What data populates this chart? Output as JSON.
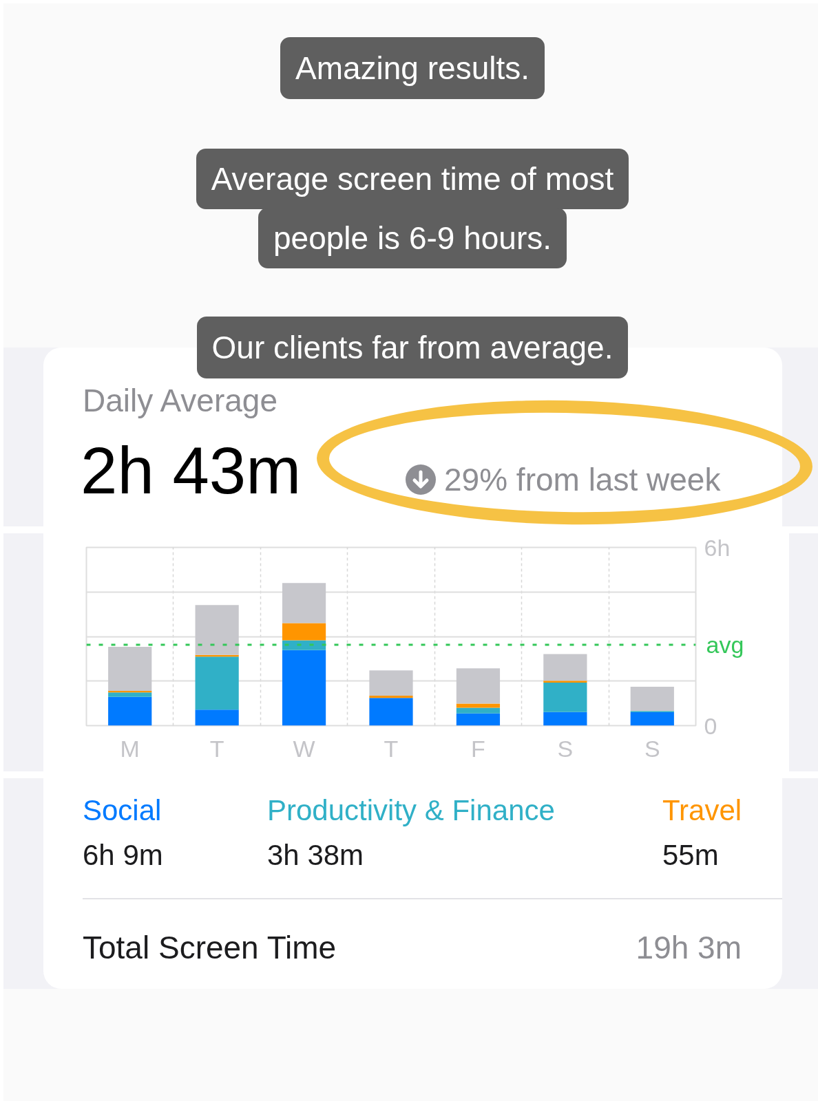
{
  "chart_data": {
    "type": "bar",
    "title": "Amazing results.",
    "subtitle": "Average screen time of most people is 6-9 hours.",
    "annotations": [
      "Our clients far from average.",
      "Daily Average",
      "2h 43m",
      "29% from last week",
      "6h 9m",
      "3h 38m",
      "55m",
      "Total Screen Time",
      "19h 3m"
    ],
    "categories": [
      "M",
      "T",
      "W",
      "T",
      "F",
      "S",
      "S"
    ],
    "stacked": true,
    "series": [
      {
        "name": "Social",
        "color": "#007aff",
        "values": [
          0.97,
          0.54,
          2.54,
          0.93,
          0.41,
          0.46,
          0.45
        ]
      },
      {
        "name": "Productivity & Finance",
        "color": "#30b0c7",
        "values": [
          0.15,
          1.78,
          0.33,
          null,
          0.19,
          0.99,
          0.04
        ]
      },
      {
        "name": "Travel",
        "color": "#ff9500",
        "values": [
          0.05,
          0.06,
          0.58,
          0.08,
          0.14,
          0.06,
          null
        ]
      },
      {
        "color": "#c7c7cc",
        "values": [
          1.48,
          1.68,
          1.35,
          0.85,
          1.19,
          0.9,
          0.82
        ]
      }
    ],
    "ylim": [
      0,
      6
    ],
    "yticks": [
      0,
      {
        "value": 1.5,
        "label": null
      },
      {
        "value": 3,
        "label": null
      },
      {
        "value": 4.5,
        "label": null
      },
      {
        "value": 6,
        "label": "6h"
      }
    ],
    "ref_lines": [
      {
        "axis": "y",
        "value": 2.72,
        "label": "avg",
        "color": "#34c759",
        "line_style": "dashed"
      }
    ],
    "grid": true,
    "legend": "bottom"
  }
}
